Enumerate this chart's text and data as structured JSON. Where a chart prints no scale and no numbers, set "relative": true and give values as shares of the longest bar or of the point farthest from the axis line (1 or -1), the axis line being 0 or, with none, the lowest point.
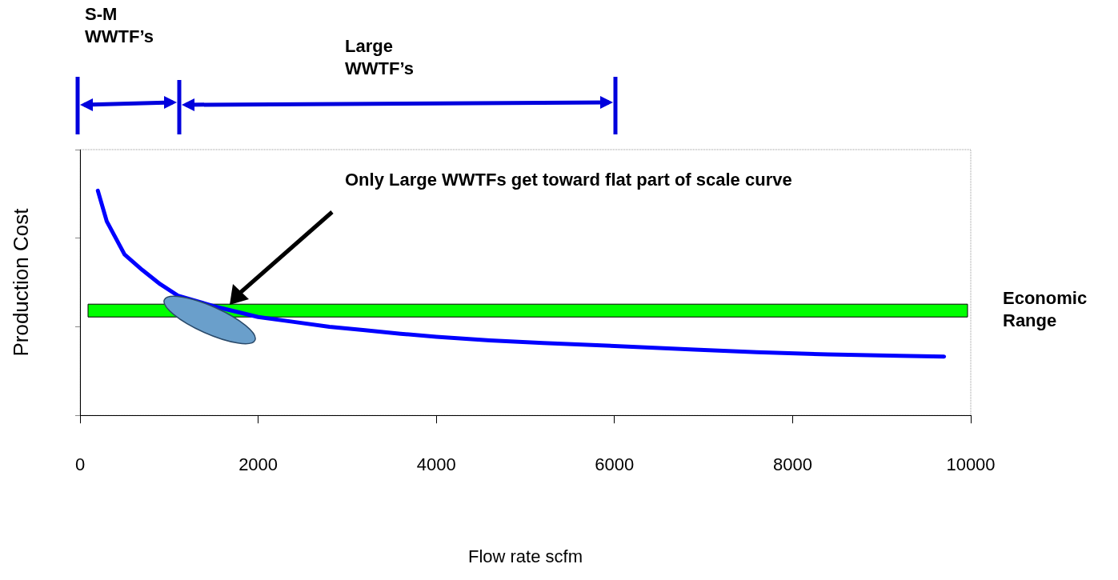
{
  "chart_data": {
    "type": "line",
    "xlabel": "Flow rate scfm",
    "ylabel": "Production Cost",
    "relative": true,
    "xlim": [
      0,
      10000
    ],
    "xticks": [
      0,
      2000,
      4000,
      6000,
      8000,
      10000
    ],
    "legend": false,
    "marker": "none",
    "line_style": "solid",
    "x": [
      200,
      300,
      500,
      700,
      900,
      1100,
      1500,
      2000,
      2400,
      2800,
      3200,
      3600,
      4000,
      4600,
      5200,
      6000,
      6900,
      7600,
      8400,
      9200,
      9700
    ],
    "series": [
      {
        "color": "#0000ff",
        "values": [
          1.0,
          0.864,
          0.716,
          0.647,
          0.584,
          0.533,
          0.486,
          0.438,
          0.416,
          0.394,
          0.379,
          0.363,
          0.35,
          0.334,
          0.322,
          0.309,
          0.293,
          0.281,
          0.271,
          0.265,
          0.262
        ]
      }
    ],
    "bands": [
      {
        "axis": "y",
        "from": 0.438,
        "to": 0.495,
        "label": "Economic Range",
        "color": "#00ff00"
      }
    ],
    "annotations": [
      "S-M WWTF’s",
      "Large WWTF’s",
      "Only Large WWTFs get toward flat part of scale curve"
    ]
  }
}
